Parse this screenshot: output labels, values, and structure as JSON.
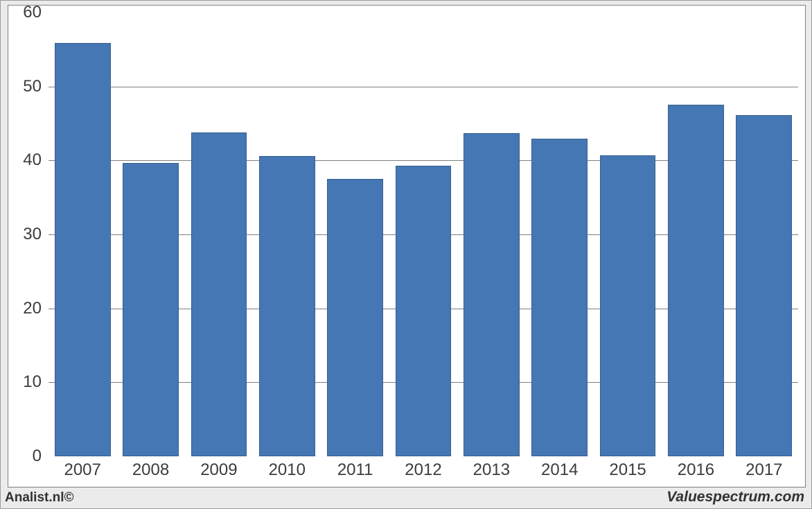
{
  "chart": {
    "type": "bar",
    "background_color": "#ffffff",
    "outer_background_color": "#ebebeb",
    "frame_border_color": "#7f7f7f",
    "outer_border_color": "#9a9a9a",
    "grid_color": "#7f7f7f",
    "bar_fill": "#4577b4",
    "bar_border": "#355f8d",
    "bar_width_ratio": 0.82,
    "ylim": [
      0,
      60
    ],
    "yticks": [
      0,
      10,
      20,
      30,
      40,
      50,
      60
    ],
    "categories": [
      "2007",
      "2008",
      "2009",
      "2010",
      "2011",
      "2012",
      "2013",
      "2014",
      "2015",
      "2016",
      "2017"
    ],
    "values": [
      55.9,
      39.7,
      43.8,
      40.6,
      37.5,
      39.3,
      43.7,
      42.9,
      40.7,
      47.5,
      46.1
    ],
    "tick_fontsize": 24,
    "tick_color": "#3c3c3c"
  },
  "footer": {
    "left": "Analist.nl©",
    "right": "Valuespectrum.com",
    "left_fontsize": 19,
    "right_fontsize": 21,
    "color": "#323232"
  }
}
